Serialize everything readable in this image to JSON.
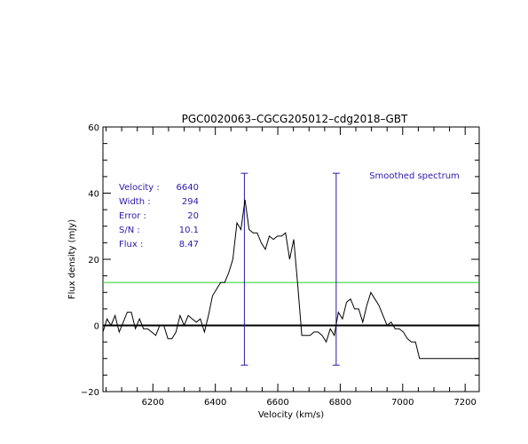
{
  "chart_data": {
    "type": "line",
    "title": "PGC0020063–CGCG205012–cdg2018–GBT",
    "xlabel": "Velocity (km/s)",
    "ylabel": "Flux density (mJy)",
    "xlim": [
      6040,
      7245
    ],
    "ylim": [
      -20,
      60
    ],
    "x_ticks": [
      6200,
      6400,
      6600,
      6800,
      7000,
      7200
    ],
    "x_tick_labels": [
      "6200",
      "6400",
      "6600",
      "6800",
      "7000",
      "7200"
    ],
    "y_ticks": [
      -20,
      0,
      20,
      40,
      60
    ],
    "y_tick_labels": [
      "−20",
      "0",
      "20",
      "40",
      "60"
    ],
    "grid": false,
    "annotation": "Smoothed spectrum",
    "measurements": [
      {
        "label": "Velocity :",
        "value": "6640"
      },
      {
        "label": "Width :",
        "value": "294"
      },
      {
        "label": "Error :",
        "value": "20"
      },
      {
        "label": "S/N :",
        "value": "10.1"
      },
      {
        "label": "Flux :",
        "value": "8.47"
      }
    ],
    "series": [
      {
        "color": "#000000",
        "x": [
          6040,
          6053,
          6066,
          6079,
          6092,
          6105,
          6118,
          6131,
          6144,
          6157,
          6170,
          6183,
          6196,
          6209,
          6222,
          6235,
          6248,
          6261,
          6274,
          6287,
          6300,
          6313,
          6326,
          6339,
          6352,
          6365,
          6378,
          6391,
          6404,
          6417,
          6430,
          6443,
          6456,
          6469,
          6482,
          6495,
          6508,
          6521,
          6534,
          6547,
          6560,
          6573,
          6586,
          6599,
          6612,
          6625,
          6638,
          6651,
          6664,
          6677,
          6690,
          6703,
          6716,
          6729,
          6742,
          6755,
          6768,
          6781,
          6794,
          6807,
          6820,
          6833,
          6846,
          6859,
          6872,
          6885,
          6898,
          6911,
          6924,
          6937,
          6950,
          6963,
          6976,
          6989,
          7002,
          7015,
          7028,
          7041,
          7054,
          7067,
          7080,
          7093,
          7106,
          7119,
          7132,
          7145,
          7158,
          7171,
          7184,
          7197,
          7210,
          7223,
          7236,
          7245
        ],
        "y": [
          -2,
          2,
          0,
          3,
          -2,
          1,
          4,
          4,
          -1,
          2,
          -1,
          -1,
          -2,
          -3,
          0,
          0,
          -4,
          -4,
          -2,
          3,
          0,
          3,
          2,
          1,
          2,
          -2,
          3,
          9,
          11,
          13,
          13,
          16,
          20,
          31,
          29,
          38,
          29,
          28,
          28,
          25,
          23,
          27,
          26,
          27,
          27,
          28,
          20,
          26,
          12,
          -3,
          -3,
          -3,
          -2,
          -2,
          -3,
          -5,
          -1,
          -3,
          4,
          2,
          7,
          8,
          5,
          5,
          1,
          6,
          10,
          8,
          6,
          3,
          0,
          1,
          -1,
          -1,
          -2,
          -4,
          -5,
          -5,
          -10,
          -10,
          -10,
          -10,
          -10,
          -10,
          -10,
          -10,
          -10,
          -10,
          -10,
          -10,
          -10,
          -10,
          -10,
          -10
        ]
      }
    ]
  }
}
